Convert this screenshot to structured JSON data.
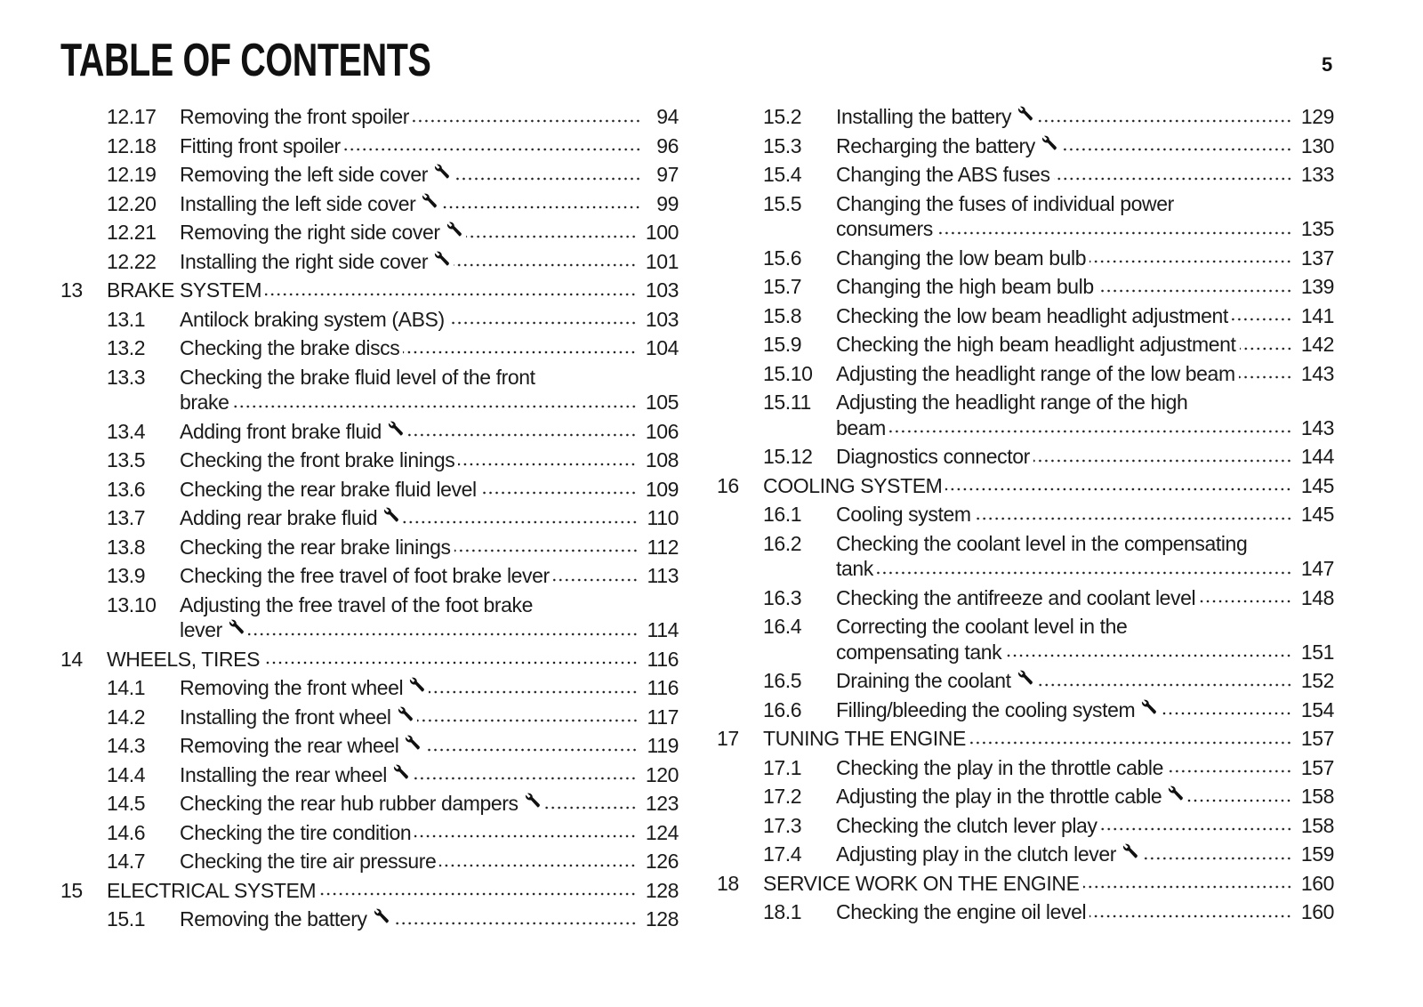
{
  "header": {
    "title": "TABLE OF CONTENTS",
    "page_number": "5"
  },
  "columns": [
    [
      {
        "num": "12.17",
        "lines": [
          "Removing the front spoiler"
        ],
        "page": "94",
        "wrench": false,
        "level": 2
      },
      {
        "num": "12.18",
        "lines": [
          "Fitting front spoiler"
        ],
        "page": "96",
        "wrench": false,
        "level": 2
      },
      {
        "num": "12.19",
        "lines": [
          "Removing the left side cover"
        ],
        "page": "97",
        "wrench": true,
        "level": 2
      },
      {
        "num": "12.20",
        "lines": [
          "Installing the left side cover"
        ],
        "page": "99",
        "wrench": true,
        "level": 2
      },
      {
        "num": "12.21",
        "lines": [
          "Removing the right side cover"
        ],
        "page": "100",
        "wrench": true,
        "level": 2
      },
      {
        "num": "12.22",
        "lines": [
          "Installing the right side cover"
        ],
        "page": "101",
        "wrench": true,
        "level": 2
      },
      {
        "num": "13",
        "lines": [
          "BRAKE SYSTEM"
        ],
        "page": "103",
        "wrench": false,
        "level": 1
      },
      {
        "num": "13.1",
        "lines": [
          "Antilock braking system (ABS)"
        ],
        "page": "103",
        "wrench": false,
        "level": 2
      },
      {
        "num": "13.2",
        "lines": [
          "Checking the brake discs"
        ],
        "page": "104",
        "wrench": false,
        "level": 2
      },
      {
        "num": "13.3",
        "lines": [
          "Checking the brake fluid level of the front",
          "brake"
        ],
        "page": "105",
        "wrench": false,
        "level": 2
      },
      {
        "num": "13.4",
        "lines": [
          "Adding front brake fluid"
        ],
        "page": "106",
        "wrench": true,
        "level": 2
      },
      {
        "num": "13.5",
        "lines": [
          "Checking the front brake linings"
        ],
        "page": "108",
        "wrench": false,
        "level": 2
      },
      {
        "num": "13.6",
        "lines": [
          "Checking the rear brake fluid level"
        ],
        "page": "109",
        "wrench": false,
        "level": 2
      },
      {
        "num": "13.7",
        "lines": [
          "Adding rear brake fluid"
        ],
        "page": "110",
        "wrench": true,
        "level": 2
      },
      {
        "num": "13.8",
        "lines": [
          "Checking the rear brake linings"
        ],
        "page": "112",
        "wrench": false,
        "level": 2
      },
      {
        "num": "13.9",
        "lines": [
          "Checking the free travel of foot brake lever"
        ],
        "page": "113",
        "wrench": false,
        "level": 2
      },
      {
        "num": "13.10",
        "lines": [
          "Adjusting the free travel of the foot brake",
          "lever"
        ],
        "page": "114",
        "wrench": true,
        "level": 2
      },
      {
        "num": "14",
        "lines": [
          "WHEELS, TIRES"
        ],
        "page": "116",
        "wrench": false,
        "level": 1
      },
      {
        "num": "14.1",
        "lines": [
          "Removing the front wheel"
        ],
        "page": "116",
        "wrench": true,
        "level": 2
      },
      {
        "num": "14.2",
        "lines": [
          "Installing the front wheel"
        ],
        "page": "117",
        "wrench": true,
        "level": 2
      },
      {
        "num": "14.3",
        "lines": [
          "Removing the rear wheel"
        ],
        "page": "119",
        "wrench": true,
        "level": 2
      },
      {
        "num": "14.4",
        "lines": [
          "Installing the rear wheel"
        ],
        "page": "120",
        "wrench": true,
        "level": 2
      },
      {
        "num": "14.5",
        "lines": [
          "Checking the rear hub rubber dampers"
        ],
        "page": "123",
        "wrench": true,
        "level": 2
      },
      {
        "num": "14.6",
        "lines": [
          "Checking the tire condition"
        ],
        "page": "124",
        "wrench": false,
        "level": 2
      },
      {
        "num": "14.7",
        "lines": [
          "Checking the tire air pressure"
        ],
        "page": "126",
        "wrench": false,
        "level": 2
      },
      {
        "num": "15",
        "lines": [
          "ELECTRICAL SYSTEM"
        ],
        "page": "128",
        "wrench": false,
        "level": 1
      },
      {
        "num": "15.1",
        "lines": [
          "Removing the battery"
        ],
        "page": "128",
        "wrench": true,
        "level": 2
      }
    ],
    [
      {
        "num": "15.2",
        "lines": [
          "Installing the battery"
        ],
        "page": "129",
        "wrench": true,
        "level": 2
      },
      {
        "num": "15.3",
        "lines": [
          "Recharging the battery"
        ],
        "page": "130",
        "wrench": true,
        "level": 2
      },
      {
        "num": "15.4",
        "lines": [
          "Changing the ABS fuses"
        ],
        "page": "133",
        "wrench": false,
        "level": 2
      },
      {
        "num": "15.5",
        "lines": [
          "Changing the fuses of individual power",
          "consumers"
        ],
        "page": "135",
        "wrench": false,
        "level": 2
      },
      {
        "num": "15.6",
        "lines": [
          "Changing the low beam bulb"
        ],
        "page": "137",
        "wrench": false,
        "level": 2
      },
      {
        "num": "15.7",
        "lines": [
          "Changing the high beam bulb"
        ],
        "page": "139",
        "wrench": false,
        "level": 2
      },
      {
        "num": "15.8",
        "lines": [
          "Checking the low beam headlight adjustment"
        ],
        "page": "141",
        "wrench": false,
        "level": 2
      },
      {
        "num": "15.9",
        "lines": [
          "Checking the high beam headlight adjustment"
        ],
        "page": "142",
        "wrench": false,
        "level": 2
      },
      {
        "num": "15.10",
        "lines": [
          "Adjusting the headlight range of the low beam"
        ],
        "page": "143",
        "wrench": false,
        "level": 2
      },
      {
        "num": "15.11",
        "lines": [
          "Adjusting the headlight range of the high",
          "beam"
        ],
        "page": "143",
        "wrench": false,
        "level": 2
      },
      {
        "num": "15.12",
        "lines": [
          "Diagnostics connector"
        ],
        "page": "144",
        "wrench": false,
        "level": 2
      },
      {
        "num": "16",
        "lines": [
          "COOLING SYSTEM"
        ],
        "page": "145",
        "wrench": false,
        "level": 1
      },
      {
        "num": "16.1",
        "lines": [
          "Cooling system"
        ],
        "page": "145",
        "wrench": false,
        "level": 2
      },
      {
        "num": "16.2",
        "lines": [
          "Checking the coolant level in the compensating",
          "tank"
        ],
        "page": "147",
        "wrench": false,
        "level": 2
      },
      {
        "num": "16.3",
        "lines": [
          "Checking the antifreeze and coolant level"
        ],
        "page": "148",
        "wrench": false,
        "level": 2
      },
      {
        "num": "16.4",
        "lines": [
          "Correcting the coolant level in the",
          "compensating tank"
        ],
        "page": "151",
        "wrench": false,
        "level": 2
      },
      {
        "num": "16.5",
        "lines": [
          "Draining the coolant"
        ],
        "page": "152",
        "wrench": true,
        "level": 2
      },
      {
        "num": "16.6",
        "lines": [
          "Filling/bleeding the cooling system"
        ],
        "page": "154",
        "wrench": true,
        "level": 2
      },
      {
        "num": "17",
        "lines": [
          "TUNING THE ENGINE"
        ],
        "page": "157",
        "wrench": false,
        "level": 1
      },
      {
        "num": "17.1",
        "lines": [
          "Checking the play in the throttle cable"
        ],
        "page": "157",
        "wrench": false,
        "level": 2
      },
      {
        "num": "17.2",
        "lines": [
          "Adjusting the play in the throttle cable"
        ],
        "page": "158",
        "wrench": true,
        "level": 2
      },
      {
        "num": "17.3",
        "lines": [
          "Checking the clutch lever play"
        ],
        "page": "158",
        "wrench": false,
        "level": 2
      },
      {
        "num": "17.4",
        "lines": [
          "Adjusting play in the clutch lever"
        ],
        "page": "159",
        "wrench": true,
        "level": 2
      },
      {
        "num": "18",
        "lines": [
          "SERVICE WORK ON THE ENGINE"
        ],
        "page": "160",
        "wrench": false,
        "level": 1
      },
      {
        "num": "18.1",
        "lines": [
          "Checking the engine oil level"
        ],
        "page": "160",
        "wrench": false,
        "level": 2
      }
    ]
  ],
  "icons": {
    "wrench": "wrench-icon"
  }
}
